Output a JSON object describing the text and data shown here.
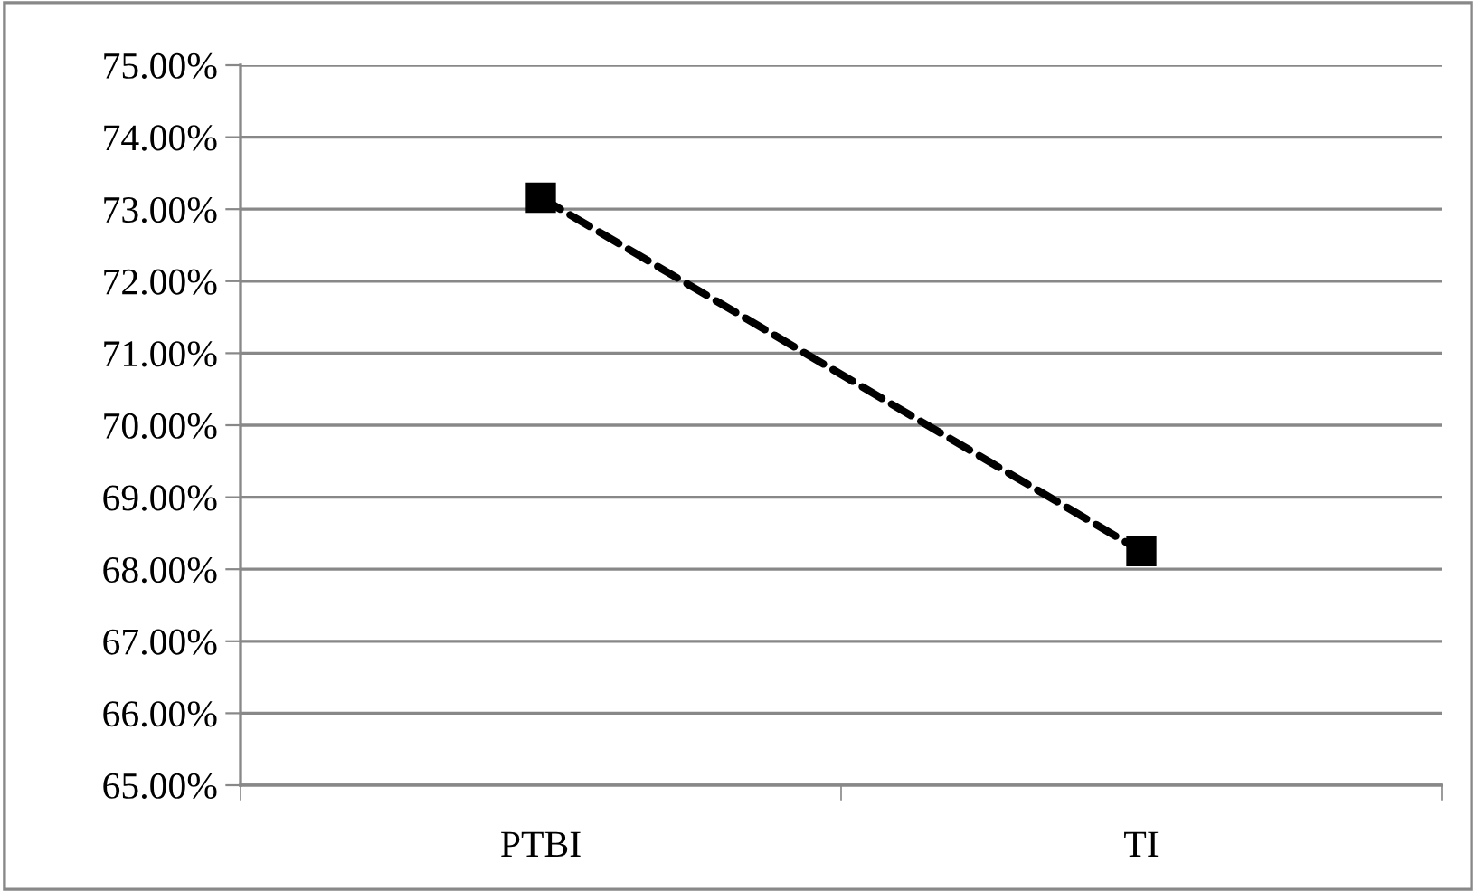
{
  "chart_data": {
    "type": "line",
    "categories": [
      "PTBI",
      "TI"
    ],
    "series": [
      {
        "color": "#000000",
        "values": [
          73.16,
          68.25
        ]
      }
    ],
    "ylim": [
      65,
      75
    ],
    "yticks": [
      {
        "value": 65,
        "label": "65.00%"
      },
      {
        "value": 66,
        "label": "66.00%"
      },
      {
        "value": 67,
        "label": "67.00%"
      },
      {
        "value": 68,
        "label": "68.00%"
      },
      {
        "value": 69,
        "label": "69.00%"
      },
      {
        "value": 70,
        "label": "70.00%"
      },
      {
        "value": 71,
        "label": "71.00%"
      },
      {
        "value": 72,
        "label": "72.00%"
      },
      {
        "value": 73,
        "label": "73.00%"
      },
      {
        "value": 74,
        "label": "74.00%"
      },
      {
        "value": 75,
        "label": "75.00%"
      }
    ],
    "grid": "y",
    "marker": "square",
    "line_style": "dashed"
  }
}
